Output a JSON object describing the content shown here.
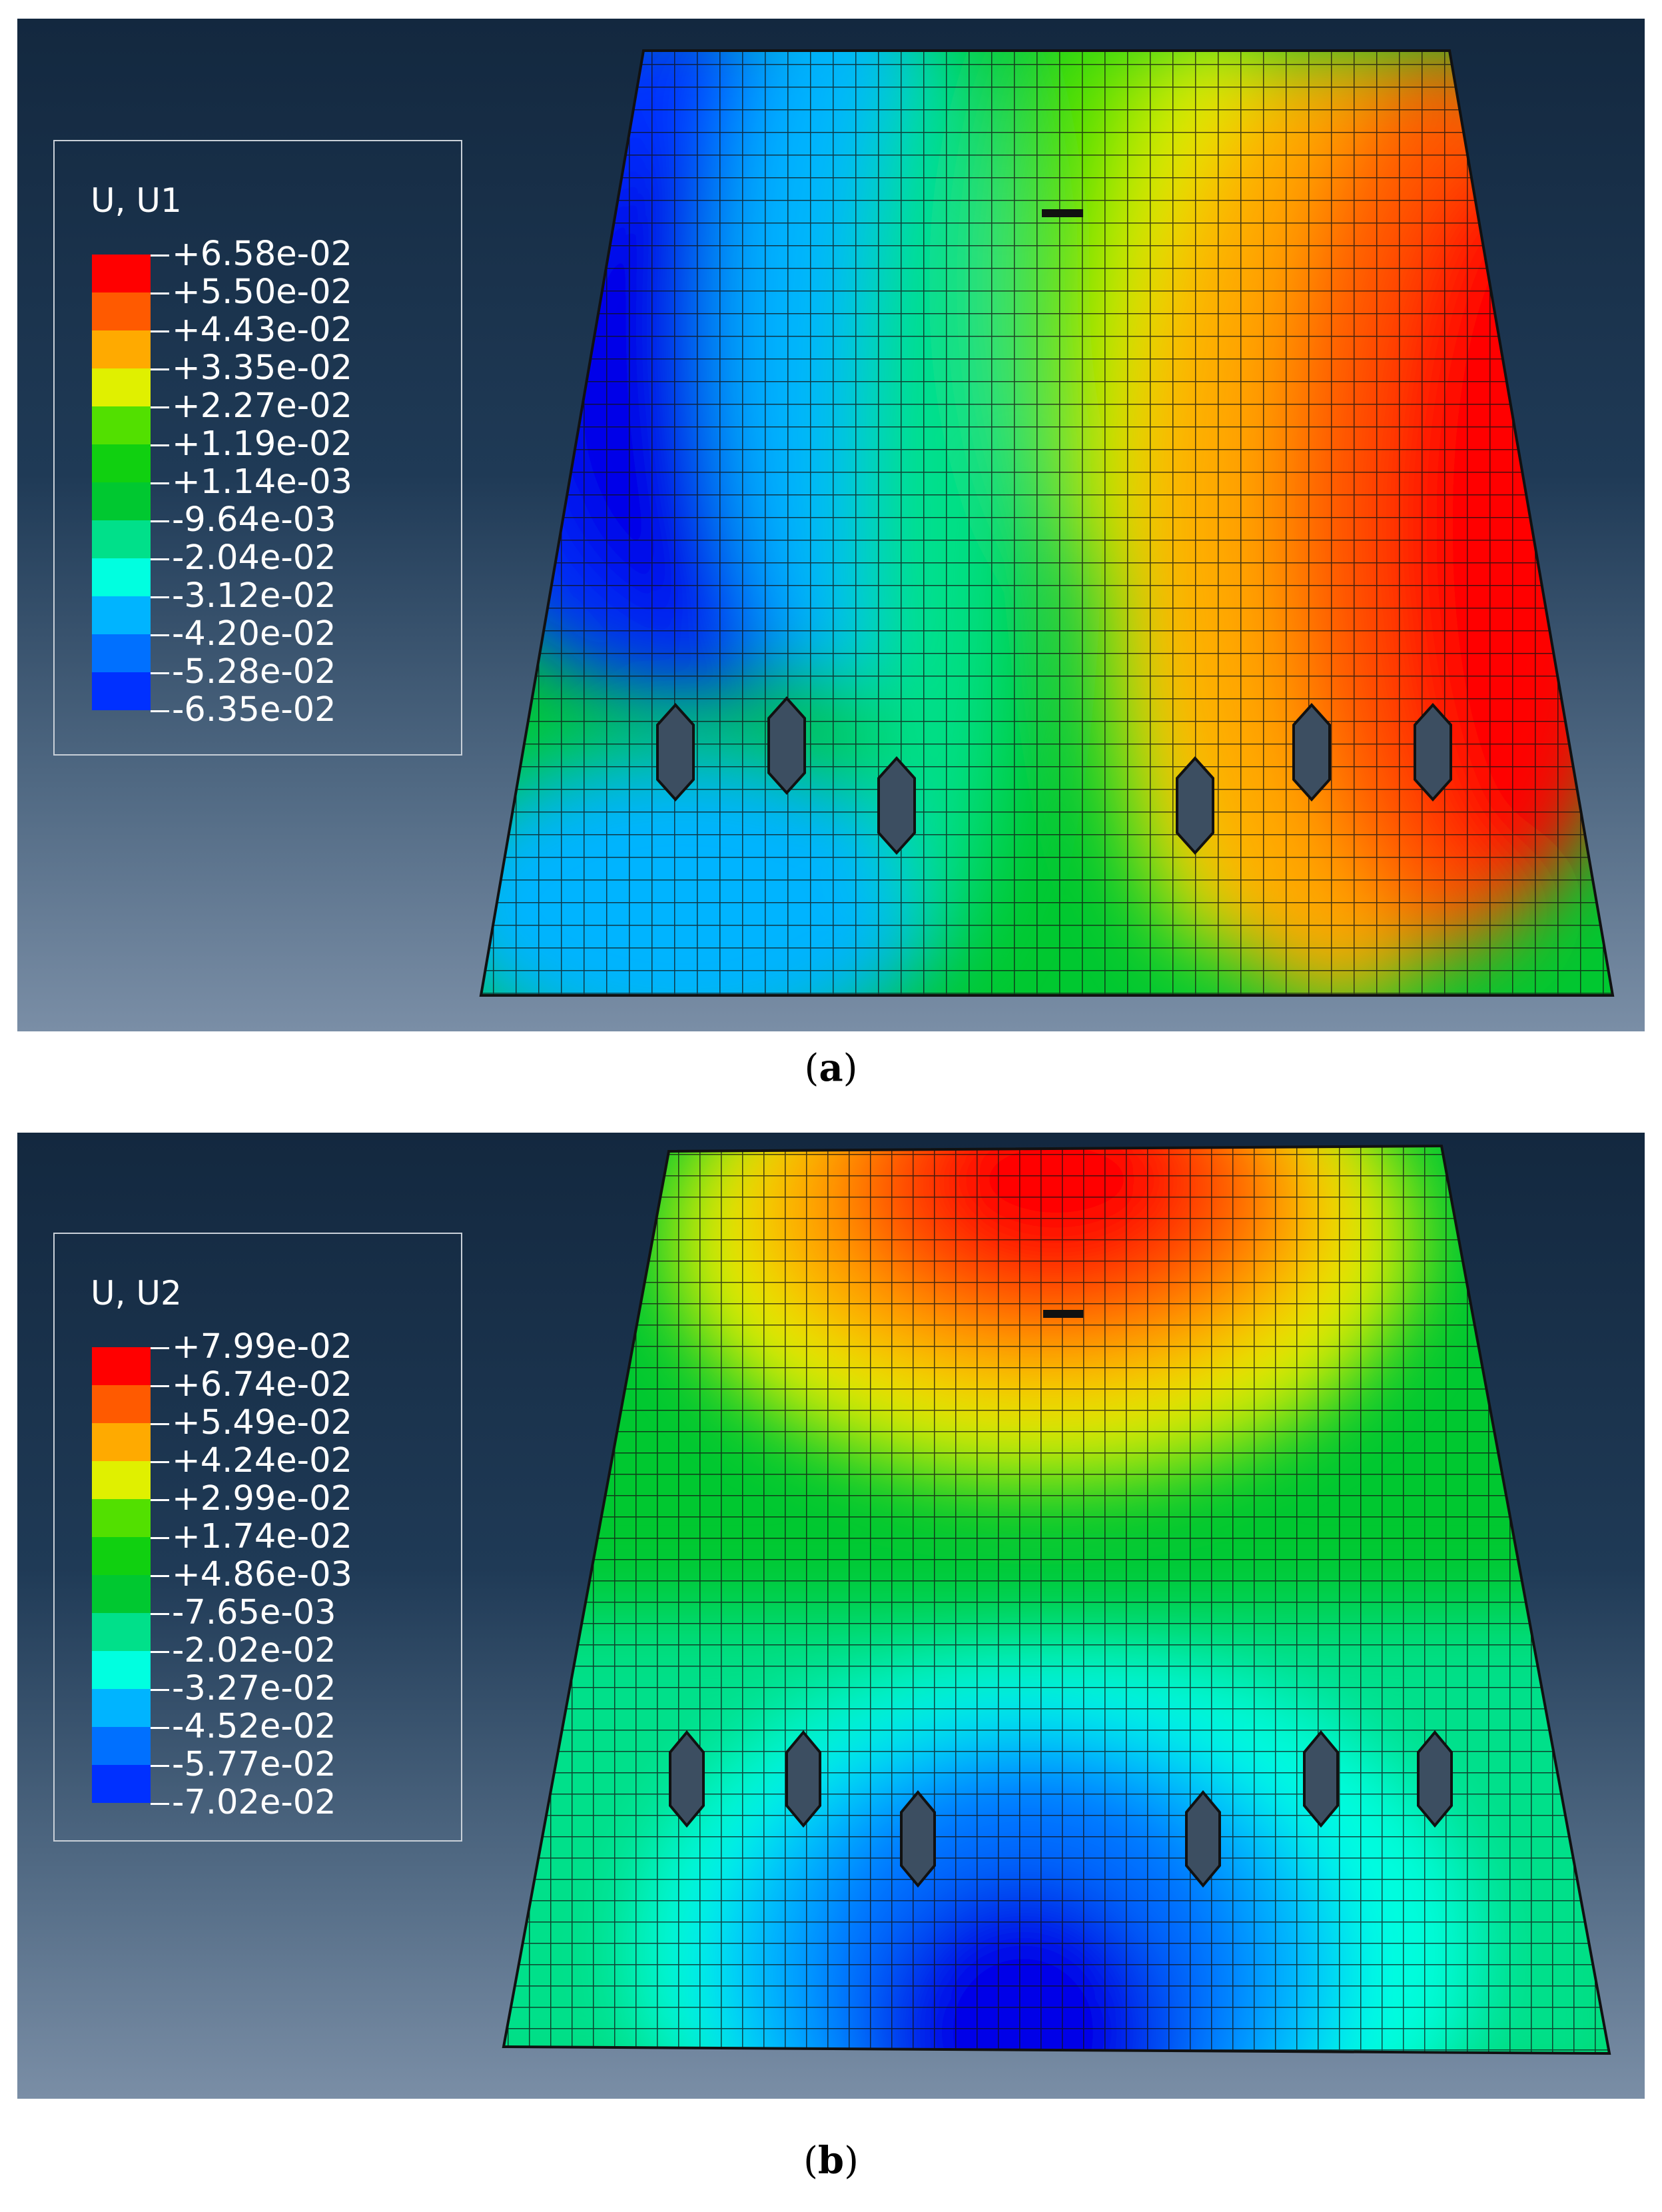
{
  "figures": [
    {
      "id": "a",
      "variable": "U, U1",
      "caption_letter": "a",
      "legend_values": [
        "+6.58e-02",
        "+5.50e-02",
        "+4.43e-02",
        "+3.35e-02",
        "+2.27e-02",
        "+1.19e-02",
        "+1.14e-03",
        "-9.64e-03",
        "-2.04e-02",
        "-3.12e-02",
        "-4.20e-02",
        "-5.28e-02",
        "-6.35e-02"
      ]
    },
    {
      "id": "b",
      "variable": "U, U2",
      "caption_letter": "b",
      "legend_values": [
        "+7.99e-02",
        "+6.74e-02",
        "+5.49e-02",
        "+4.24e-02",
        "+2.99e-02",
        "+1.74e-02",
        "+4.86e-03",
        "-7.65e-03",
        "-2.02e-02",
        "-3.27e-02",
        "-4.52e-02",
        "-5.77e-02",
        "-7.02e-02"
      ]
    }
  ],
  "colors": {
    "contour_bands": [
      "#ff0000",
      "#ff5a00",
      "#ffaa00",
      "#e0f000",
      "#52e000",
      "#10d010",
      "#00c830",
      "#00e08a",
      "#00ffe0",
      "#00b4ff",
      "#0070ff",
      "#0030ff",
      "#0000e8"
    ],
    "mesh_line": "#111111"
  }
}
